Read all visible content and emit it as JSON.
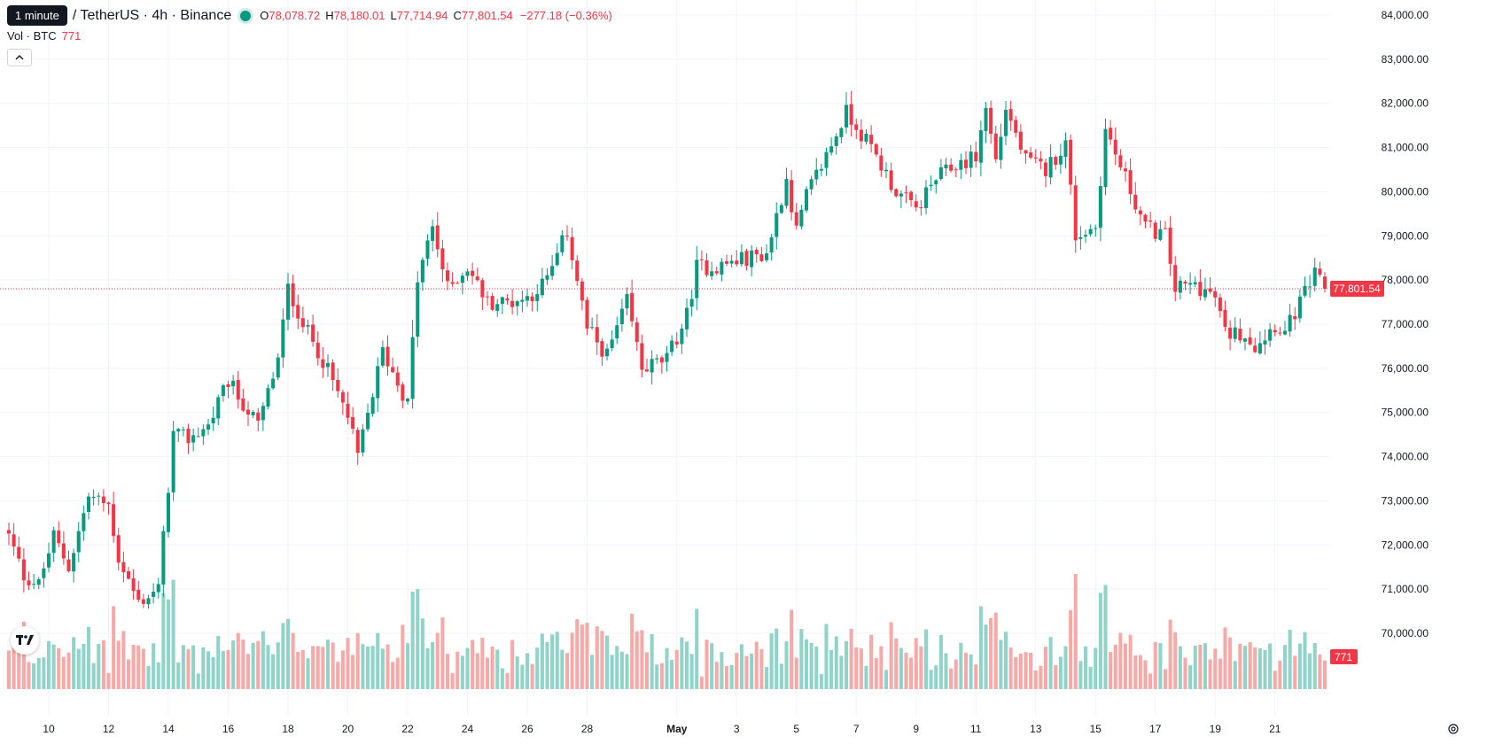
{
  "header": {
    "tooltip": "1 minute",
    "symbol": "/ TetherUS · 4h · Binance",
    "ohlc": [
      {
        "key": "O",
        "value": "78,078.72"
      },
      {
        "key": "H",
        "value": "78,180.01"
      },
      {
        "key": "L",
        "value": "77,714.94"
      },
      {
        "key": "C",
        "value": "77,801.54"
      }
    ],
    "change": "−277.18 (−0.36%)",
    "status_color": "#089981"
  },
  "volume_legend": {
    "label": "Vol · BTC",
    "value": "771"
  },
  "icons": {
    "collapse": "chevron-up-icon",
    "logo": "tradingview-logo-icon",
    "settings": "gear-icon"
  },
  "colors": {
    "up": "#089981",
    "down": "#f23645",
    "up_volume": "#8fd3c9",
    "down_volume": "#f7a9a7",
    "grid": "#f0f3fa",
    "axis_text": "#131722"
  },
  "chart_data": {
    "type": "candlestick",
    "interval": "4h",
    "y_axis": {
      "range": [
        69500,
        84300
      ],
      "ticks": [
        70000,
        71000,
        72000,
        73000,
        74000,
        75000,
        76000,
        77000,
        78000,
        79000,
        80000,
        81000,
        82000,
        83000,
        84000
      ],
      "tick_labels": [
        "70,000.00",
        "71,000.00",
        "72,000.00",
        "73,000.00",
        "74,000.00",
        "75,000.00",
        "76,000.00",
        "77,000.00",
        "78,000.00",
        "79,000.00",
        "80,000.00",
        "81,000.00",
        "82,000.00",
        "83,000.00",
        "84,000.00"
      ]
    },
    "x_axis": {
      "bar_range": [
        0,
        240
      ],
      "ticks": [
        {
          "bar": 8,
          "label": "10"
        },
        {
          "bar": 20,
          "label": "12"
        },
        {
          "bar": 32,
          "label": "14"
        },
        {
          "bar": 44,
          "label": "16"
        },
        {
          "bar": 56,
          "label": "18"
        },
        {
          "bar": 68,
          "label": "20"
        },
        {
          "bar": 80,
          "label": "22"
        },
        {
          "bar": 92,
          "label": "24"
        },
        {
          "bar": 104,
          "label": "26"
        },
        {
          "bar": 116,
          "label": "28"
        },
        {
          "bar": 134,
          "label": "May",
          "bold": true
        },
        {
          "bar": 146,
          "label": "3"
        },
        {
          "bar": 158,
          "label": "5"
        },
        {
          "bar": 170,
          "label": "7"
        },
        {
          "bar": 182,
          "label": "9"
        },
        {
          "bar": 194,
          "label": "11"
        },
        {
          "bar": 206,
          "label": "13"
        },
        {
          "bar": 218,
          "label": "15"
        },
        {
          "bar": 230,
          "label": "17"
        },
        {
          "bar": 242,
          "label": "19"
        },
        {
          "bar": 254,
          "label": "21"
        }
      ]
    },
    "last_price": 77801.54,
    "last_price_label": "77,801.54",
    "last_volume_label": "771",
    "volume_scale_max": 3100,
    "anchors": [
      [
        0,
        72200
      ],
      [
        3,
        71300
      ],
      [
        6,
        71100
      ],
      [
        9,
        72200
      ],
      [
        12,
        71500
      ],
      [
        16,
        73100
      ],
      [
        20,
        72900
      ],
      [
        22,
        71700
      ],
      [
        26,
        70700
      ],
      [
        30,
        71000
      ],
      [
        33,
        74500
      ],
      [
        36,
        74400
      ],
      [
        40,
        74700
      ],
      [
        44,
        75700
      ],
      [
        50,
        74700
      ],
      [
        54,
        76200
      ],
      [
        56,
        77800
      ],
      [
        60,
        76800
      ],
      [
        63,
        76200
      ],
      [
        68,
        74900
      ],
      [
        70,
        74000
      ],
      [
        75,
        76400
      ],
      [
        80,
        75200
      ],
      [
        82,
        78000
      ],
      [
        85,
        79200
      ],
      [
        88,
        77800
      ],
      [
        92,
        78300
      ],
      [
        96,
        77500
      ],
      [
        100,
        77500
      ],
      [
        104,
        77600
      ],
      [
        108,
        78000
      ],
      [
        112,
        79100
      ],
      [
        116,
        76900
      ],
      [
        120,
        76300
      ],
      [
        124,
        77500
      ],
      [
        127,
        76000
      ],
      [
        132,
        76200
      ],
      [
        136,
        77200
      ],
      [
        138,
        78300
      ],
      [
        142,
        78300
      ],
      [
        148,
        78500
      ],
      [
        152,
        78600
      ],
      [
        156,
        80300
      ],
      [
        158,
        79100
      ],
      [
        160,
        79900
      ],
      [
        166,
        81300
      ],
      [
        168,
        81800
      ],
      [
        170,
        81500
      ],
      [
        174,
        80800
      ],
      [
        178,
        80000
      ],
      [
        182,
        79600
      ],
      [
        186,
        80300
      ],
      [
        190,
        80600
      ],
      [
        194,
        80800
      ],
      [
        196,
        81900
      ],
      [
        198,
        80700
      ],
      [
        200,
        81900
      ],
      [
        204,
        80700
      ],
      [
        208,
        80500
      ],
      [
        212,
        81100
      ],
      [
        214,
        79000
      ],
      [
        218,
        79200
      ],
      [
        220,
        81400
      ],
      [
        224,
        80300
      ],
      [
        228,
        79200
      ],
      [
        232,
        79000
      ],
      [
        234,
        77800
      ],
      [
        238,
        77900
      ],
      [
        242,
        77600
      ],
      [
        244,
        76800
      ],
      [
        248,
        76800
      ],
      [
        250,
        76500
      ],
      [
        254,
        77000
      ],
      [
        256,
        76800
      ],
      [
        260,
        77700
      ],
      [
        262,
        78100
      ],
      [
        264,
        77801.54
      ]
    ]
  }
}
